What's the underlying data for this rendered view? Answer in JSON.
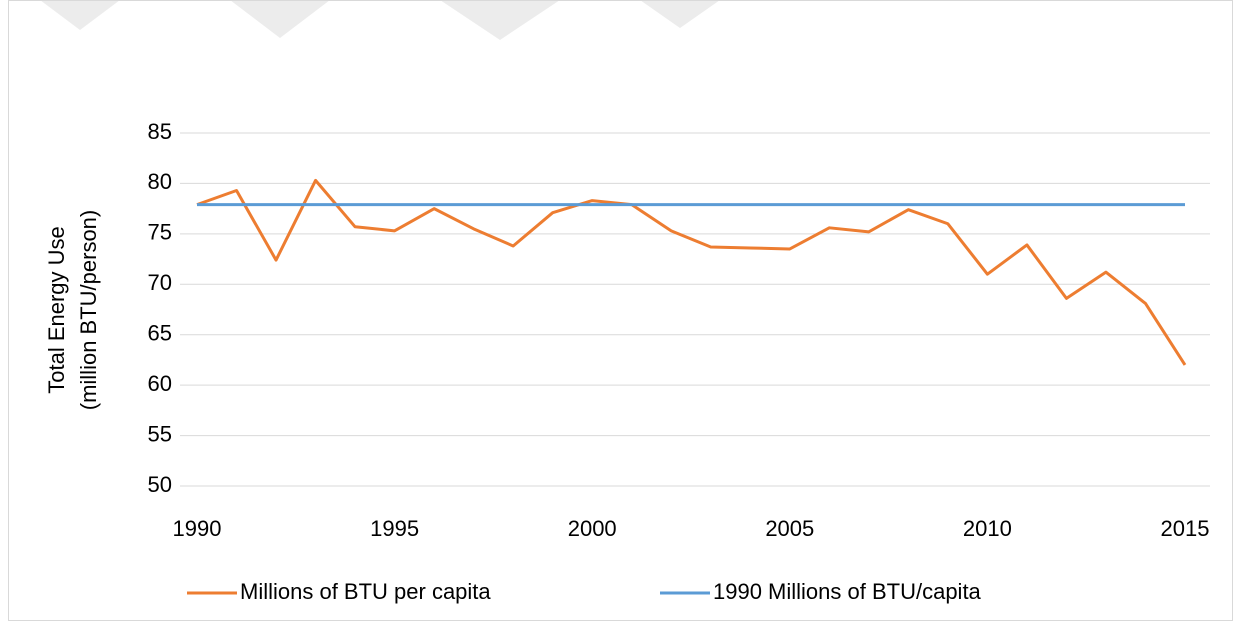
{
  "chart_data": {
    "type": "line",
    "y_label": [
      "Total Energy Use",
      "(million BTU/person)"
    ],
    "x": [
      1990,
      1991,
      1992,
      1993,
      1994,
      1995,
      1996,
      1997,
      1998,
      1999,
      2000,
      2001,
      2002,
      2003,
      2004,
      2005,
      2006,
      2007,
      2008,
      2009,
      2010,
      2011,
      2012,
      2013,
      2014,
      2015
    ],
    "series": [
      {
        "name": "Millions of BTU per capita",
        "color": "#ed7d31",
        "values": [
          77.9,
          79.3,
          72.4,
          80.3,
          75.7,
          75.3,
          77.5,
          75.5,
          73.8,
          77.1,
          78.3,
          77.9,
          75.3,
          73.7,
          73.6,
          73.5,
          75.6,
          75.2,
          77.4,
          76.0,
          71.0,
          73.9,
          68.6,
          71.2,
          68.1,
          62.0
        ]
      },
      {
        "name": "1990  Millions of BTU/capita",
        "color": "#5b9bd5",
        "values": [
          77.9,
          77.9,
          77.9,
          77.9,
          77.9,
          77.9,
          77.9,
          77.9,
          77.9,
          77.9,
          77.9,
          77.9,
          77.9,
          77.9,
          77.9,
          77.9,
          77.9,
          77.9,
          77.9,
          77.9,
          77.9,
          77.9,
          77.9,
          77.9,
          77.9,
          77.9
        ]
      }
    ],
    "xlim": [
      1990,
      2015
    ],
    "xticks": [
      1990,
      1995,
      2000,
      2005,
      2010,
      2015
    ],
    "ylim": [
      50,
      85
    ],
    "yticks": [
      50,
      55,
      60,
      65,
      70,
      75,
      80,
      85
    ],
    "grid": true,
    "legend": "bottom"
  }
}
